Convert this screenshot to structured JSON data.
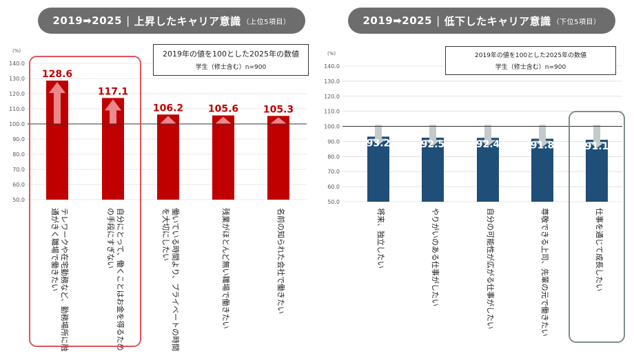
{
  "left_title": {
    "main": "2019➡2025",
    "sep": "|",
    "label": "上昇したキャリア意識",
    "sub": "（上位5項目）"
  },
  "right_title": {
    "main": "2019➡2025",
    "sep": "|",
    "label": "低下したキャリア意識",
    "sub": "（下位5項目）"
  },
  "left_note": {
    "line1": "2019年の値を100とした2025年の数値",
    "line2": "学生（修士含む）n=900"
  },
  "right_note": {
    "line1": "2019年の値を100とした2025年の数値",
    "line2": "学生（修士含む）n=900"
  },
  "colors": {
    "rise": "#c00000",
    "fall": "#1f4e79",
    "rise_highlight": "#e0525a",
    "fall_highlight": "#7d8a8d"
  },
  "chart_data": [
    {
      "type": "bar",
      "title": "上昇したキャリア意識（上位5項目）",
      "ylabel": "(%)",
      "ylim": [
        50,
        140
      ],
      "yticks": [
        "50.0",
        "60.0",
        "70.0",
        "80.0",
        "90.0",
        "100.0",
        "110.0",
        "120.0",
        "130.0",
        "140.0"
      ],
      "baseline": 100,
      "categories": [
        "テレワークや在宅勤務など、勤務場所に融通がきく職場で働きたい",
        "自分にとって、働くことはお金を得るための手段にすぎない",
        "働いている時間より、プライベートの時間を大切にしたい",
        "残業がほとんど無い職場で働きたい",
        "名前の知られた会社で働きたい"
      ],
      "values": [
        128.6,
        117.1,
        106.2,
        105.6,
        105.3
      ],
      "value_labels": [
        "128.6",
        "117.1",
        "106.2",
        "105.6",
        "105.3"
      ],
      "highlight": [
        0,
        1
      ]
    },
    {
      "type": "bar",
      "title": "低下したキャリア意識（下位5項目）",
      "ylabel": "(%)",
      "ylim": [
        50,
        140
      ],
      "yticks": [
        "50.0",
        "60.0",
        "70.0",
        "80.0",
        "90.0",
        "100.0",
        "110.0",
        "120.0",
        "130.0",
        "140.0"
      ],
      "baseline": 100,
      "categories": [
        "将来、独立したい",
        "やりがいのある仕事がしたい",
        "自分の可能性が広がる仕事がしたい",
        "尊敬できる上司、先輩の元で働きたい",
        "仕事を通じて成長したい"
      ],
      "values": [
        93.2,
        92.5,
        92.4,
        91.8,
        91.1
      ],
      "value_labels": [
        "93.2",
        "92.5",
        "92.4",
        "91.8",
        "91.1"
      ],
      "highlight": [
        4
      ]
    }
  ]
}
